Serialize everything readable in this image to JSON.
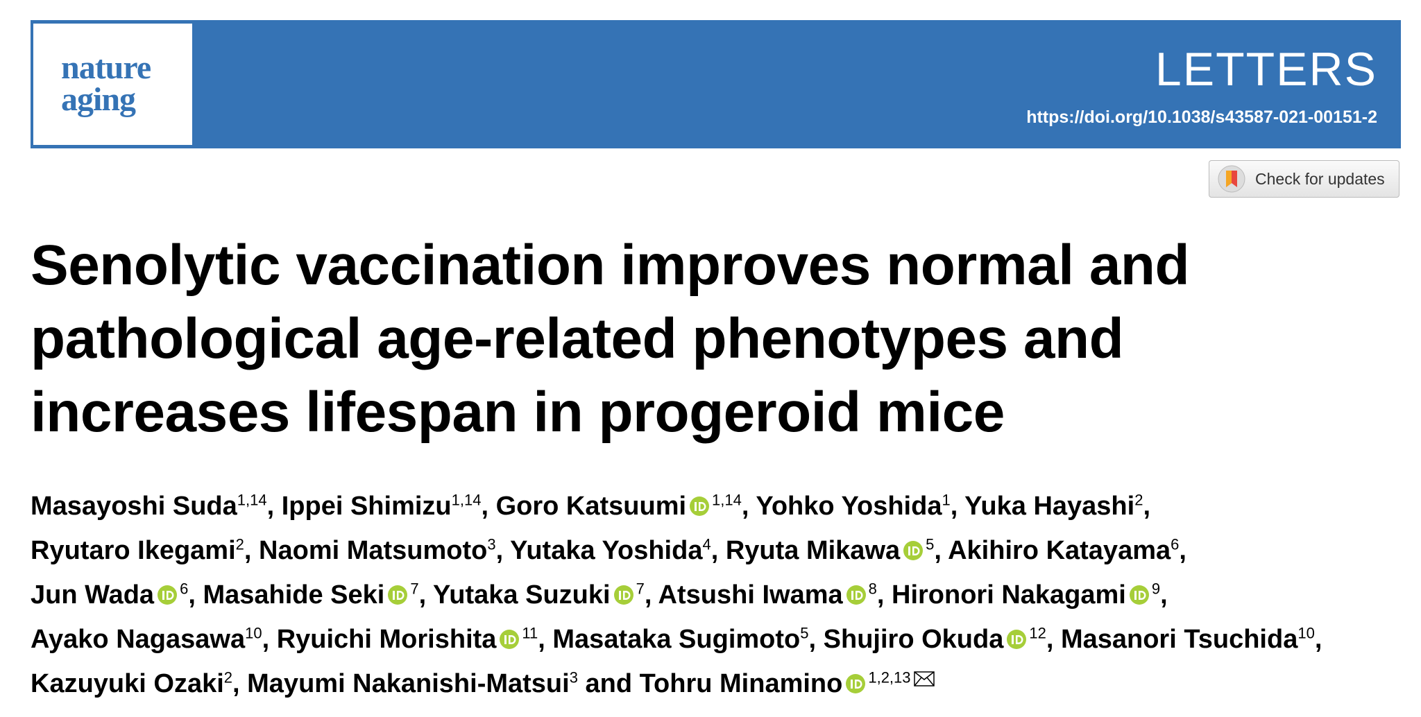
{
  "header": {
    "logo": [
      "nature",
      "aging"
    ],
    "section": "LETTERS",
    "doi": "https://doi.org/10.1038/s43587-021-00151-2"
  },
  "check_updates": "Check for updates",
  "title_lines": [
    "Senolytic vaccination improves normal and",
    "pathological age-related phenotypes and",
    "increases lifespan in progeroid mice"
  ],
  "separator": ",",
  "conjunction": "and",
  "authors": [
    {
      "name": "Masayoshi Suda",
      "affiliations": "1,14",
      "orcid": false
    },
    {
      "name": "Ippei Shimizu",
      "affiliations": "1,14",
      "orcid": false
    },
    {
      "name": "Goro Katsuumi",
      "affiliations": "1,14",
      "orcid": true
    },
    {
      "name": "Yohko Yoshida",
      "affiliations": "1",
      "orcid": false
    },
    {
      "name": "Yuka Hayashi",
      "affiliations": "2",
      "orcid": false
    },
    {
      "name": "Ryutaro Ikegami",
      "affiliations": "2",
      "orcid": false
    },
    {
      "name": "Naomi Matsumoto",
      "affiliations": "3",
      "orcid": false
    },
    {
      "name": "Yutaka Yoshida",
      "affiliations": "4",
      "orcid": false
    },
    {
      "name": "Ryuta Mikawa",
      "affiliations": "5",
      "orcid": true
    },
    {
      "name": "Akihiro Katayama",
      "affiliations": "6",
      "orcid": false
    },
    {
      "name": "Jun Wada",
      "affiliations": "6",
      "orcid": true
    },
    {
      "name": "Masahide Seki",
      "affiliations": "7",
      "orcid": true
    },
    {
      "name": "Yutaka Suzuki",
      "affiliations": "7",
      "orcid": true
    },
    {
      "name": "Atsushi Iwama",
      "affiliations": "8",
      "orcid": true
    },
    {
      "name": "Hironori Nakagami",
      "affiliations": "9",
      "orcid": true
    },
    {
      "name": "Ayako Nagasawa",
      "affiliations": "10",
      "orcid": false
    },
    {
      "name": "Ryuichi Morishita",
      "affiliations": "11",
      "orcid": true
    },
    {
      "name": "Masataka Sugimoto",
      "affiliations": "5",
      "orcid": false
    },
    {
      "name": "Shujiro Okuda",
      "affiliations": "12",
      "orcid": true
    },
    {
      "name": "Masanori Tsuchida",
      "affiliations": "10",
      "orcid": false
    },
    {
      "name": "Kazuyuki Ozaki",
      "affiliations": "2",
      "orcid": false
    },
    {
      "name": "Mayumi Nakanishi-Matsui",
      "affiliations": "3",
      "orcid": false
    },
    {
      "name": "Tohru Minamino",
      "affiliations": "1,2,13",
      "orcid": true,
      "email": true
    }
  ]
}
